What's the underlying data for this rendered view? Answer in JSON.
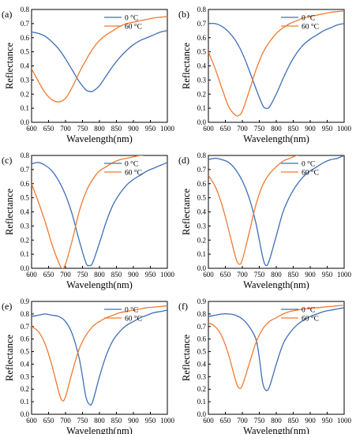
{
  "colors": {
    "series_0": "#3d6fb6",
    "series_60": "#f07a30",
    "axis": "#000000"
  },
  "chart_data": [
    {
      "panel_label": "(a)",
      "type": "line",
      "xlabel": "Wavelength(nm)",
      "ylabel": "Reflectance",
      "xlim": [
        600,
        1000
      ],
      "ylim": [
        0,
        0.8
      ],
      "xticks": [
        600,
        650,
        700,
        750,
        800,
        850,
        900,
        950,
        1000
      ],
      "yticks": [
        0,
        0.1,
        0.2,
        0.3,
        0.4,
        0.5,
        0.6,
        0.7,
        0.8
      ],
      "legend_position": "top-right",
      "series": [
        {
          "name": "0 °C",
          "x": [
            600,
            620,
            640,
            660,
            680,
            700,
            720,
            740,
            760,
            770,
            780,
            800,
            820,
            840,
            860,
            880,
            900,
            920,
            940,
            960,
            980,
            1000
          ],
          "y": [
            0.64,
            0.63,
            0.61,
            0.57,
            0.52,
            0.45,
            0.37,
            0.29,
            0.23,
            0.22,
            0.22,
            0.26,
            0.33,
            0.4,
            0.46,
            0.51,
            0.55,
            0.58,
            0.6,
            0.62,
            0.64,
            0.65
          ]
        },
        {
          "name": "60 °C",
          "x": [
            600,
            620,
            640,
            660,
            680,
            700,
            720,
            740,
            760,
            780,
            800,
            820,
            840,
            860,
            880,
            900,
            920,
            940,
            960,
            980,
            1000
          ],
          "y": [
            0.38,
            0.29,
            0.21,
            0.16,
            0.145,
            0.17,
            0.25,
            0.35,
            0.44,
            0.52,
            0.58,
            0.62,
            0.65,
            0.68,
            0.7,
            0.71,
            0.72,
            0.73,
            0.74,
            0.745,
            0.75
          ]
        }
      ]
    },
    {
      "panel_label": "(b)",
      "type": "line",
      "xlabel": "Wavelength(nm)",
      "ylabel": "Reflectance",
      "xlim": [
        600,
        1000
      ],
      "ylim": [
        0,
        0.8
      ],
      "xticks": [
        600,
        650,
        700,
        750,
        800,
        850,
        900,
        950,
        1000
      ],
      "yticks": [
        0,
        0.1,
        0.2,
        0.3,
        0.4,
        0.5,
        0.6,
        0.7,
        0.8
      ],
      "legend_position": "top-right",
      "series": [
        {
          "name": "0 °C",
          "x": [
            600,
            620,
            640,
            660,
            680,
            700,
            720,
            740,
            760,
            770,
            780,
            800,
            820,
            840,
            860,
            880,
            900,
            920,
            940,
            960,
            980,
            1000
          ],
          "y": [
            0.7,
            0.7,
            0.68,
            0.64,
            0.58,
            0.49,
            0.37,
            0.24,
            0.12,
            0.1,
            0.11,
            0.2,
            0.31,
            0.41,
            0.49,
            0.55,
            0.59,
            0.62,
            0.65,
            0.67,
            0.69,
            0.7
          ]
        },
        {
          "name": "60 °C",
          "x": [
            600,
            620,
            640,
            660,
            680,
            690,
            700,
            720,
            740,
            760,
            780,
            800,
            820,
            840,
            860,
            880,
            900,
            920,
            940,
            960,
            980,
            1000
          ],
          "y": [
            0.5,
            0.38,
            0.24,
            0.11,
            0.05,
            0.05,
            0.08,
            0.22,
            0.37,
            0.49,
            0.57,
            0.63,
            0.67,
            0.7,
            0.72,
            0.74,
            0.75,
            0.76,
            0.77,
            0.78,
            0.785,
            0.79
          ]
        }
      ]
    },
    {
      "panel_label": "(c)",
      "type": "line",
      "xlabel": "Wavelength(nm)",
      "ylabel": "Reflectance",
      "xlim": [
        600,
        1000
      ],
      "ylim": [
        0,
        0.8
      ],
      "xticks": [
        600,
        650,
        700,
        750,
        800,
        850,
        900,
        950,
        1000
      ],
      "yticks": [
        0,
        0.1,
        0.2,
        0.3,
        0.4,
        0.5,
        0.6,
        0.7,
        0.8
      ],
      "legend_position": "top-right",
      "series": [
        {
          "name": "0 °C",
          "x": [
            600,
            620,
            640,
            660,
            680,
            700,
            720,
            740,
            760,
            770,
            780,
            800,
            820,
            840,
            860,
            880,
            900,
            920,
            940,
            960,
            980,
            1000
          ],
          "y": [
            0.74,
            0.75,
            0.73,
            0.69,
            0.62,
            0.52,
            0.38,
            0.2,
            0.04,
            0.02,
            0.04,
            0.18,
            0.33,
            0.45,
            0.53,
            0.59,
            0.63,
            0.66,
            0.69,
            0.71,
            0.73,
            0.75
          ]
        },
        {
          "name": "60 °C",
          "x": [
            600,
            620,
            640,
            660,
            680,
            690,
            700,
            720,
            740,
            760,
            780,
            800,
            820,
            840,
            860,
            880,
            900,
            920,
            940,
            960,
            980,
            1000
          ],
          "y": [
            0.6,
            0.47,
            0.33,
            0.17,
            0.04,
            0.0,
            0.03,
            0.2,
            0.4,
            0.54,
            0.63,
            0.69,
            0.72,
            0.75,
            0.77,
            0.78,
            0.79,
            0.8,
            0.805,
            0.81,
            0.815,
            0.82
          ]
        }
      ]
    },
    {
      "panel_label": "(d)",
      "type": "line",
      "xlabel": "Wavelength(nm)",
      "ylabel": "Reflectance",
      "xlim": [
        600,
        1000
      ],
      "ylim": [
        0,
        0.8
      ],
      "xticks": [
        600,
        650,
        700,
        750,
        800,
        850,
        900,
        950,
        1000
      ],
      "yticks": [
        0,
        0.1,
        0.2,
        0.3,
        0.4,
        0.5,
        0.6,
        0.7,
        0.8
      ],
      "legend_position": "top-right",
      "series": [
        {
          "name": "0 °C",
          "x": [
            600,
            620,
            640,
            660,
            680,
            700,
            720,
            740,
            760,
            770,
            780,
            800,
            820,
            840,
            860,
            880,
            900,
            920,
            940,
            960,
            980,
            1000
          ],
          "y": [
            0.77,
            0.78,
            0.77,
            0.75,
            0.7,
            0.62,
            0.5,
            0.32,
            0.08,
            0.02,
            0.06,
            0.23,
            0.4,
            0.51,
            0.59,
            0.65,
            0.69,
            0.72,
            0.75,
            0.77,
            0.78,
            0.8
          ]
        },
        {
          "name": "60 °C",
          "x": [
            600,
            620,
            640,
            660,
            680,
            690,
            700,
            720,
            740,
            760,
            780,
            800,
            820,
            840,
            860,
            880,
            900,
            920,
            940,
            960,
            980,
            1000
          ],
          "y": [
            0.66,
            0.58,
            0.45,
            0.27,
            0.08,
            0.03,
            0.06,
            0.25,
            0.45,
            0.59,
            0.67,
            0.72,
            0.76,
            0.78,
            0.8,
            0.81,
            0.82,
            0.83,
            0.835,
            0.84,
            0.845,
            0.85
          ]
        }
      ]
    },
    {
      "panel_label": "(e)",
      "type": "line",
      "xlabel": "Wavelength(nm)",
      "ylabel": "Reflectance",
      "xlim": [
        600,
        1000
      ],
      "ylim": [
        0,
        0.9
      ],
      "xticks": [
        600,
        650,
        700,
        750,
        800,
        850,
        900,
        950,
        1000
      ],
      "yticks": [
        0,
        0.1,
        0.2,
        0.3,
        0.4,
        0.5,
        0.6,
        0.7,
        0.8,
        0.9
      ],
      "legend_position": "top-right",
      "series": [
        {
          "name": "0 °C",
          "x": [
            600,
            620,
            640,
            660,
            680,
            700,
            720,
            740,
            750,
            760,
            770,
            780,
            800,
            820,
            840,
            860,
            880,
            900,
            920,
            940,
            960,
            980,
            1000
          ],
          "y": [
            0.78,
            0.79,
            0.8,
            0.79,
            0.78,
            0.74,
            0.64,
            0.45,
            0.3,
            0.14,
            0.08,
            0.1,
            0.3,
            0.47,
            0.59,
            0.66,
            0.71,
            0.74,
            0.77,
            0.79,
            0.81,
            0.82,
            0.83
          ]
        },
        {
          "name": "60 °C",
          "x": [
            600,
            620,
            640,
            660,
            680,
            690,
            700,
            720,
            740,
            760,
            780,
            800,
            820,
            840,
            860,
            880,
            900,
            920,
            940,
            960,
            980,
            1000
          ],
          "y": [
            0.7,
            0.66,
            0.56,
            0.39,
            0.18,
            0.11,
            0.14,
            0.34,
            0.52,
            0.63,
            0.7,
            0.74,
            0.77,
            0.79,
            0.81,
            0.82,
            0.83,
            0.84,
            0.85,
            0.855,
            0.86,
            0.865
          ]
        }
      ]
    },
    {
      "panel_label": "(f)",
      "type": "line",
      "xlabel": "Wavelength(nm)",
      "ylabel": "Reflectance",
      "xlim": [
        600,
        1000
      ],
      "ylim": [
        0,
        0.9
      ],
      "xticks": [
        600,
        650,
        700,
        750,
        800,
        850,
        900,
        950,
        1000
      ],
      "yticks": [
        0,
        0.1,
        0.2,
        0.3,
        0.4,
        0.5,
        0.6,
        0.7,
        0.8,
        0.9
      ],
      "legend_position": "top-right",
      "series": [
        {
          "name": "0 °C",
          "x": [
            600,
            620,
            640,
            660,
            680,
            700,
            720,
            740,
            750,
            760,
            770,
            780,
            800,
            820,
            840,
            860,
            880,
            900,
            920,
            940,
            960,
            980,
            1000
          ],
          "y": [
            0.78,
            0.79,
            0.8,
            0.8,
            0.79,
            0.76,
            0.7,
            0.6,
            0.45,
            0.25,
            0.19,
            0.22,
            0.4,
            0.56,
            0.65,
            0.71,
            0.75,
            0.78,
            0.8,
            0.82,
            0.83,
            0.84,
            0.85
          ]
        },
        {
          "name": "60 °C",
          "x": [
            600,
            620,
            640,
            660,
            680,
            690,
            700,
            720,
            740,
            760,
            780,
            800,
            820,
            840,
            860,
            880,
            900,
            920,
            940,
            960,
            980,
            1000
          ],
          "y": [
            0.73,
            0.7,
            0.62,
            0.47,
            0.27,
            0.21,
            0.23,
            0.4,
            0.57,
            0.68,
            0.74,
            0.77,
            0.8,
            0.82,
            0.83,
            0.84,
            0.845,
            0.85,
            0.855,
            0.86,
            0.865,
            0.87
          ]
        }
      ]
    }
  ]
}
